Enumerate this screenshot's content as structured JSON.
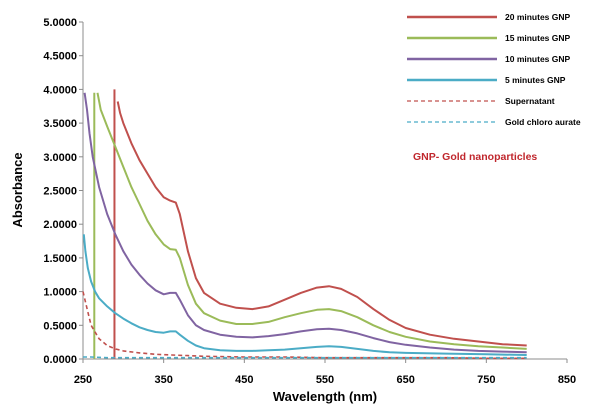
{
  "chart_data": {
    "type": "line",
    "title": "",
    "xlabel": "Wavelength (nm)",
    "ylabel": "Absorbance",
    "xlim": [
      250,
      850
    ],
    "ylim": [
      0,
      5
    ],
    "x_ticks": [
      "250",
      "350",
      "450",
      "550",
      "650",
      "750",
      "850"
    ],
    "y_ticks": [
      "0.0000",
      "0.5000",
      "1.0000",
      "1.5000",
      "2.0000",
      "2.5000",
      "3.0000",
      "3.5000",
      "4.0000",
      "4.5000",
      "5.0000"
    ],
    "grid": false,
    "legend_position": "top-right",
    "annotation": "GNP- Gold nanoparticles",
    "annotation_color": "#c0272d",
    "series": [
      {
        "name": "20 minutes GNP",
        "color": "#c0504d",
        "style": "solid",
        "spike": {
          "x": 289,
          "y": 4.0
        },
        "x": [
          293,
          296,
          300,
          310,
          320,
          330,
          340,
          350,
          358,
          365,
          370,
          380,
          390,
          400,
          420,
          440,
          460,
          480,
          500,
          520,
          540,
          555,
          570,
          590,
          610,
          630,
          650,
          680,
          710,
          740,
          770,
          800
        ],
        "y": [
          3.82,
          3.65,
          3.5,
          3.2,
          2.95,
          2.75,
          2.55,
          2.4,
          2.35,
          2.32,
          2.15,
          1.6,
          1.2,
          0.98,
          0.82,
          0.76,
          0.74,
          0.78,
          0.88,
          0.98,
          1.06,
          1.08,
          1.04,
          0.92,
          0.74,
          0.58,
          0.46,
          0.36,
          0.3,
          0.26,
          0.22,
          0.2
        ]
      },
      {
        "name": "15 minutes GNP",
        "color": "#9bbb59",
        "style": "solid",
        "spike": {
          "x": 264,
          "y": 3.95
        },
        "x": [
          268,
          272,
          280,
          290,
          300,
          310,
          320,
          330,
          340,
          350,
          358,
          365,
          370,
          380,
          390,
          400,
          420,
          440,
          460,
          480,
          500,
          520,
          540,
          555,
          570,
          590,
          610,
          630,
          650,
          680,
          710,
          740,
          770,
          800
        ],
        "y": [
          3.95,
          3.7,
          3.45,
          3.15,
          2.85,
          2.55,
          2.3,
          2.05,
          1.85,
          1.7,
          1.63,
          1.62,
          1.5,
          1.1,
          0.82,
          0.68,
          0.57,
          0.52,
          0.52,
          0.55,
          0.62,
          0.68,
          0.73,
          0.74,
          0.71,
          0.62,
          0.5,
          0.4,
          0.33,
          0.26,
          0.22,
          0.19,
          0.17,
          0.15
        ]
      },
      {
        "name": "10 minutes GNP",
        "color": "#8064a2",
        "style": "solid",
        "x": [
          252,
          255,
          258,
          262,
          270,
          280,
          290,
          300,
          310,
          320,
          330,
          340,
          350,
          358,
          365,
          370,
          380,
          390,
          400,
          420,
          440,
          460,
          480,
          500,
          520,
          540,
          555,
          570,
          590,
          610,
          630,
          650,
          680,
          710,
          740,
          770,
          800
        ],
        "y": [
          3.95,
          3.7,
          3.35,
          3.0,
          2.55,
          2.15,
          1.85,
          1.6,
          1.4,
          1.25,
          1.12,
          1.02,
          0.96,
          0.98,
          0.98,
          0.88,
          0.65,
          0.5,
          0.43,
          0.36,
          0.33,
          0.32,
          0.34,
          0.37,
          0.41,
          0.44,
          0.45,
          0.43,
          0.38,
          0.31,
          0.25,
          0.21,
          0.17,
          0.14,
          0.12,
          0.11,
          0.1
        ]
      },
      {
        "name": "5 minutes GNP",
        "color": "#4bacc6",
        "style": "solid",
        "x": [
          251,
          253,
          256,
          260,
          265,
          270,
          280,
          290,
          300,
          310,
          320,
          330,
          340,
          350,
          358,
          365,
          370,
          380,
          390,
          400,
          420,
          440,
          460,
          480,
          500,
          520,
          540,
          555,
          570,
          590,
          610,
          630,
          650,
          700,
          750,
          800
        ],
        "y": [
          1.85,
          1.6,
          1.35,
          1.15,
          1.0,
          0.9,
          0.78,
          0.68,
          0.6,
          0.53,
          0.47,
          0.43,
          0.4,
          0.39,
          0.41,
          0.41,
          0.36,
          0.27,
          0.2,
          0.16,
          0.13,
          0.12,
          0.12,
          0.13,
          0.14,
          0.16,
          0.18,
          0.19,
          0.18,
          0.15,
          0.12,
          0.1,
          0.09,
          0.08,
          0.07,
          0.06
        ]
      },
      {
        "name": "Supernatant",
        "color": "#c0504d",
        "style": "dashed",
        "x": [
          250,
          255,
          260,
          270,
          280,
          290,
          300,
          320,
          340,
          360,
          380,
          400,
          450,
          500,
          550,
          600,
          650,
          700,
          750,
          800
        ],
        "y": [
          1.0,
          0.75,
          0.5,
          0.3,
          0.2,
          0.15,
          0.12,
          0.09,
          0.07,
          0.06,
          0.05,
          0.04,
          0.03,
          0.03,
          0.02,
          0.02,
          0.02,
          0.02,
          0.01,
          0.01
        ]
      },
      {
        "name": "Gold chloro aurate",
        "color": "#4bacc6",
        "style": "dashed",
        "x": [
          250,
          260,
          280,
          300,
          350,
          400,
          450,
          500,
          550,
          600,
          650,
          700,
          750,
          800
        ],
        "y": [
          0.03,
          0.03,
          0.02,
          0.02,
          0.02,
          0.02,
          0.02,
          0.02,
          0.02,
          0.02,
          0.02,
          0.02,
          0.02,
          0.02
        ]
      }
    ]
  }
}
